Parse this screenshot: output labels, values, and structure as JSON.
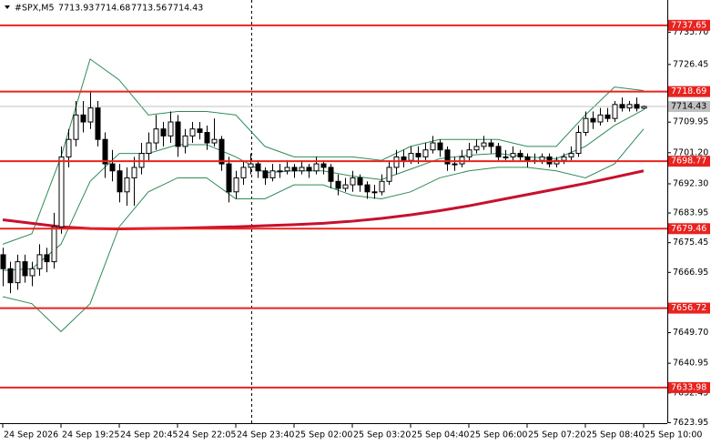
{
  "chart_data": {
    "type": "candlestick",
    "symbol": "#SPX,M5",
    "ylim": [
      7623.8,
      7744.9
    ],
    "yticks": [
      {
        "value": 7735.7,
        "label": "7735.70"
      },
      7726.45,
      7709.95,
      {
        "value": 7701.2,
        "label": "7701.20"
      },
      {
        "value": 7692.3,
        "label": "7692.30"
      },
      7683.95,
      7675.45,
      7666.95,
      {
        "value": 7649.7,
        "label": "7649.70"
      },
      7640.95,
      7632.45,
      7623.95
    ],
    "xticks": [
      {
        "value": 0,
        "label": "24 Sep 2026"
      },
      {
        "value": 8,
        "label": "24 Sep 19:25"
      },
      {
        "value": 16,
        "label": "24 Sep 20:45"
      },
      {
        "value": 24,
        "label": "24 Sep 22:05"
      },
      {
        "value": 32,
        "label": "24 Sep 23:40"
      },
      {
        "value": 40,
        "label": "25 Sep 02:00"
      },
      {
        "value": 48,
        "label": "25 Sep 03:20"
      },
      {
        "value": 56,
        "label": "25 Sep 04:40"
      },
      {
        "value": 64,
        "label": "25 Sep 06:00"
      },
      {
        "value": 72,
        "label": "25 Sep 07:20"
      },
      {
        "value": 80,
        "label": "25 Sep 08:40"
      },
      {
        "value": 88,
        "label": "25 Sep 10:00"
      }
    ],
    "levels": [
      7737.65,
      7718.69,
      7698.77,
      7679.46,
      7656.72,
      7633.98
    ],
    "level_color": "#e8231f",
    "ohlc": [
      [
        7672,
        7674,
        7663,
        7668
      ],
      [
        7668,
        7670,
        7661,
        7664
      ],
      [
        7664,
        7672,
        7662,
        7670
      ],
      [
        7670,
        7672,
        7664,
        7666
      ],
      [
        7666,
        7670,
        7663,
        7668
      ],
      [
        7668,
        7675,
        7666,
        7672
      ],
      [
        7672,
        7674,
        7667,
        7670
      ],
      [
        7670,
        7684,
        7668,
        7680
      ],
      [
        7680,
        7703,
        7678,
        7700
      ],
      [
        7700,
        7708,
        7697,
        7705
      ],
      [
        7705,
        7716,
        7703,
        7712
      ],
      [
        7712,
        7716,
        7707,
        7710
      ],
      [
        7710,
        7719,
        7708,
        7714
      ],
      [
        7714,
        7716,
        7703,
        7705
      ],
      [
        7705,
        7707,
        7694,
        7698
      ],
      [
        7698,
        7702,
        7693,
        7696
      ],
      [
        7696,
        7698,
        7687,
        7690
      ],
      [
        7690,
        7697,
        7686,
        7694
      ],
      [
        7694,
        7700,
        7686,
        7697
      ],
      [
        7697,
        7704,
        7695,
        7701
      ],
      [
        7701,
        7707,
        7699,
        7704
      ],
      [
        7704,
        7712,
        7702,
        7708
      ],
      [
        7708,
        7710,
        7703,
        7706
      ],
      [
        7706,
        7713,
        7704,
        7710
      ],
      [
        7710,
        7712,
        7700,
        7703
      ],
      [
        7703,
        7708,
        7701,
        7706
      ],
      [
        7706,
        7710,
        7704,
        7708
      ],
      [
        7708,
        7710,
        7705,
        7707
      ],
      [
        7707,
        7709,
        7702,
        7704
      ],
      [
        7704,
        7711,
        7703,
        7705
      ],
      [
        7705,
        7706,
        7696,
        7698
      ],
      [
        7698,
        7700,
        7687,
        7690
      ],
      [
        7690,
        7696,
        7688,
        7694
      ],
      [
        7694,
        7699,
        7692,
        7697
      ],
      [
        7697,
        7701,
        7695,
        7698
      ],
      [
        7698,
        7699,
        7694,
        7696
      ],
      [
        7696,
        7697,
        7692,
        7694
      ],
      [
        7694,
        7698,
        7693,
        7696
      ],
      [
        7696,
        7698,
        7694,
        7696
      ],
      [
        7696,
        7699,
        7695,
        7697
      ],
      [
        7697,
        7698,
        7694,
        7696
      ],
      [
        7696,
        7699,
        7695,
        7697
      ],
      [
        7697,
        7698,
        7694,
        7696
      ],
      [
        7696,
        7700,
        7695,
        7698
      ],
      [
        7698,
        7699,
        7695,
        7697
      ],
      [
        7697,
        7698,
        7691,
        7693
      ],
      [
        7693,
        7695,
        7689,
        7691
      ],
      [
        7691,
        7694,
        7690,
        7692
      ],
      [
        7692,
        7696,
        7690,
        7694
      ],
      [
        7694,
        7695,
        7690,
        7692
      ],
      [
        7692,
        7693,
        7688,
        7690
      ],
      [
        7690,
        7692,
        7688,
        7690
      ],
      [
        7690,
        7695,
        7689,
        7693
      ],
      [
        7693,
        7699,
        7692,
        7697
      ],
      [
        7697,
        7702,
        7695,
        7700
      ],
      [
        7700,
        7702,
        7697,
        7699
      ],
      [
        7699,
        7703,
        7698,
        7701
      ],
      [
        7701,
        7703,
        7698,
        7700
      ],
      [
        7700,
        7704,
        7699,
        7702
      ],
      [
        7702,
        7706,
        7701,
        7704
      ],
      [
        7704,
        7705,
        7700,
        7702
      ],
      [
        7702,
        7703,
        7696,
        7698
      ],
      [
        7698,
        7700,
        7696,
        7698
      ],
      [
        7698,
        7702,
        7697,
        7700
      ],
      [
        7700,
        7704,
        7699,
        7702
      ],
      [
        7702,
        7705,
        7701,
        7703
      ],
      [
        7703,
        7706,
        7702,
        7704
      ],
      [
        7704,
        7705,
        7701,
        7703
      ],
      [
        7703,
        7704,
        7699,
        7700
      ],
      [
        7700,
        7702,
        7699,
        7700
      ],
      [
        7700,
        7703,
        7699,
        7701
      ],
      [
        7701,
        7702,
        7699,
        7700
      ],
      [
        7700,
        7701,
        7697,
        7699
      ],
      [
        7699,
        7701,
        7698,
        7699
      ],
      [
        7699,
        7701,
        7698,
        7700
      ],
      [
        7700,
        7701,
        7697,
        7698
      ],
      [
        7698,
        7700,
        7697,
        7699
      ],
      [
        7699,
        7701,
        7698,
        7700
      ],
      [
        7700,
        7703,
        7699,
        7701
      ],
      [
        7701,
        7709,
        7700,
        7707
      ],
      [
        7707,
        7713,
        7706,
        7711
      ],
      [
        7711,
        7713,
        7708,
        7710
      ],
      [
        7710,
        7714,
        7709,
        7712
      ],
      [
        7712,
        7714,
        7710,
        7711
      ],
      [
        7711,
        7716,
        7710,
        7715
      ],
      [
        7715,
        7717,
        7713,
        7714
      ],
      [
        7714,
        7716,
        7713,
        7715
      ],
      [
        7715,
        7717,
        7713,
        7713.93
      ],
      [
        7713.93,
        7714.68,
        7713.56,
        7714.43
      ]
    ],
    "series": [
      {
        "color": "#2e8b57",
        "x": [
          0,
          4,
          8,
          12,
          16,
          20,
          24,
          28,
          32,
          36,
          40,
          44,
          48,
          52,
          56,
          60,
          64,
          68,
          72,
          76,
          80,
          84,
          88
        ],
        "values": [
          7675,
          7678,
          7700,
          7728,
          7722,
          7712,
          7713,
          7713,
          7712,
          7703,
          7700,
          7700,
          7700,
          7699,
          7703,
          7705,
          7705,
          7705,
          7703,
          7703,
          7712,
          7720,
          7719
        ]
      },
      {
        "color": "#2e8b57",
        "x": [
          0,
          4,
          8,
          12,
          16,
          20,
          24,
          28,
          32,
          36,
          40,
          44,
          48,
          52,
          56,
          60,
          64,
          68,
          72,
          76,
          80,
          84,
          88
        ],
        "values": [
          7667.5,
          7668,
          7675,
          7693,
          7701,
          7701,
          7703.5,
          7703.5,
          7700,
          7695.5,
          7696,
          7696,
          7694.5,
          7693.5,
          7696.5,
          7699.5,
          7700.5,
          7701,
          7700,
          7699.5,
          7703,
          7709,
          7713.5
        ]
      },
      {
        "color": "#2e8b57",
        "x": [
          0,
          4,
          8,
          12,
          16,
          20,
          24,
          28,
          32,
          36,
          40,
          44,
          48,
          52,
          56,
          60,
          64,
          68,
          72,
          76,
          80,
          84,
          88
        ],
        "values": [
          7660,
          7658,
          7650,
          7658,
          7680,
          7690,
          7694,
          7694,
          7688,
          7688,
          7692,
          7692,
          7689,
          7688,
          7690,
          7694,
          7696,
          7697,
          7697,
          7696,
          7694,
          7698,
          7708
        ]
      },
      {
        "color": "#c8102e",
        "width": 3,
        "x": [
          0,
          4,
          8,
          12,
          16,
          20,
          24,
          28,
          32,
          36,
          40,
          44,
          48,
          52,
          56,
          60,
          64,
          68,
          72,
          76,
          80,
          84,
          88
        ],
        "values": [
          7682,
          7681,
          7680,
          7679.5,
          7679.4,
          7679.5,
          7679.6,
          7679.8,
          7680,
          7680.3,
          7680.6,
          7681,
          7681.6,
          7682.4,
          7683.4,
          7684.6,
          7686,
          7687.6,
          7689.2,
          7690.8,
          7692.4,
          7694.2,
          7696
        ]
      }
    ]
  }
}
